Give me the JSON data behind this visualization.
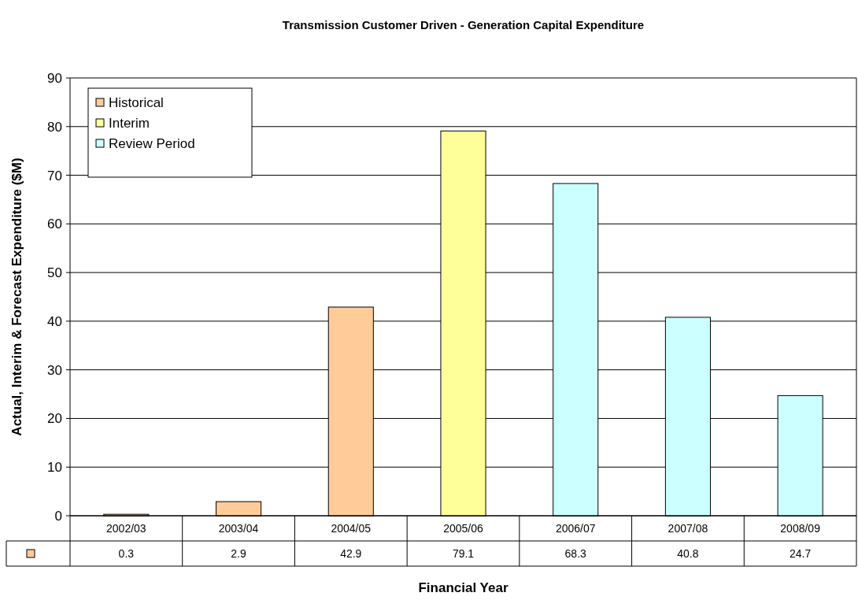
{
  "chart_data": {
    "type": "bar",
    "title": "Transmission Customer Driven - Generation Capital Expenditure",
    "xlabel": "Financial Year",
    "ylabel": "Actual, Interim & Forecast Expenditure ($M)",
    "categories": [
      "2002/03",
      "2003/04",
      "2004/05",
      "2005/06",
      "2006/07",
      "2007/08",
      "2008/09"
    ],
    "series": [
      {
        "name": "Historical",
        "color": "#ffcc99",
        "values": [
          0.3,
          2.9,
          42.9,
          null,
          null,
          null,
          null
        ]
      },
      {
        "name": "Interim",
        "color": "#ffff99",
        "values": [
          null,
          null,
          null,
          79.1,
          null,
          null,
          null
        ]
      },
      {
        "name": "Review Period",
        "color": "#ccffff",
        "values": [
          null,
          null,
          null,
          null,
          68.3,
          40.8,
          24.7
        ]
      }
    ],
    "stacked": true,
    "ylim": [
      0,
      90
    ],
    "yticks": [
      0,
      10,
      20,
      30,
      40,
      50,
      60,
      70,
      80,
      90
    ],
    "grid": "y",
    "legend": "top left",
    "data_labels": true
  }
}
